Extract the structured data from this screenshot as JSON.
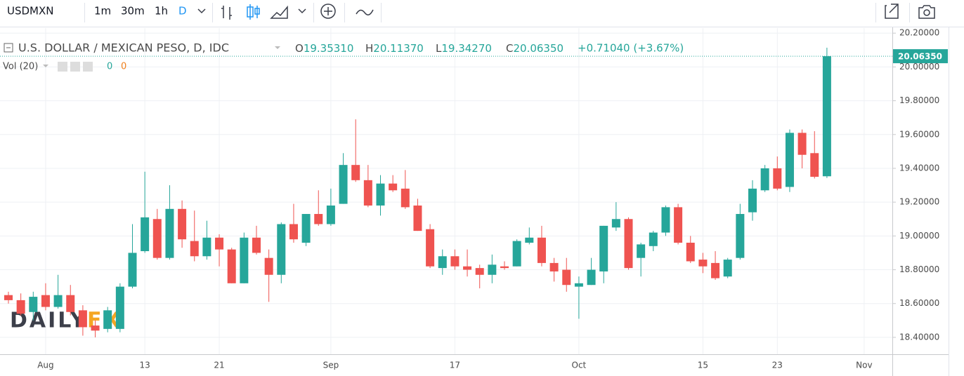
{
  "toolbar": {
    "symbol": "USDMXN",
    "intervals": [
      "1m",
      "30m",
      "1h",
      "D"
    ]
  },
  "chart_data": {
    "type": "candlestick",
    "legend": {
      "title": "U.S. DOLLAR / MEXICAN PESO, D, IDC",
      "ohlc": [
        {
          "label": "O",
          "value": "19.35310"
        },
        {
          "label": "H",
          "value": "20.11370"
        },
        {
          "label": "L",
          "value": "19.34270"
        },
        {
          "label": "C",
          "value": "20.06350"
        }
      ],
      "change": "+0.71040 (+3.67%)"
    },
    "volume": {
      "label": "Vol (20)",
      "values": [
        "0",
        "0"
      ]
    },
    "watermark": [
      "DAILY",
      "FX"
    ],
    "categories": [
      null,
      null,
      null,
      "Aug",
      null,
      null,
      null,
      null,
      null,
      null,
      null,
      "13",
      null,
      null,
      null,
      null,
      null,
      "21",
      null,
      null,
      null,
      null,
      null,
      null,
      null,
      null,
      "Sep",
      null,
      null,
      null,
      null,
      null,
      null,
      null,
      null,
      null,
      "17",
      null,
      null,
      null,
      null,
      null,
      null,
      null,
      null,
      null,
      "Oct",
      null,
      null,
      null,
      null,
      null,
      null,
      null,
      null,
      null,
      "15",
      null,
      null,
      null,
      null,
      null,
      "23",
      null,
      null,
      null,
      null,
      null,
      null,
      "Nov"
    ],
    "open": [
      18.65,
      18.62,
      18.55,
      18.65,
      18.58,
      18.65,
      18.56,
      18.47,
      18.45,
      18.45,
      18.7,
      18.91,
      19.1,
      18.87,
      19.16,
      18.97,
      18.88,
      18.99,
      18.92,
      18.72,
      18.99,
      18.87,
      18.77,
      19.07,
      18.96,
      19.13,
      19.07,
      19.19,
      19.42,
      19.33,
      19.18,
      19.31,
      19.28,
      19.18,
      19.04,
      18.81,
      18.88,
      18.82,
      18.81,
      18.77,
      18.82,
      18.82,
      18.96,
      18.99,
      18.84,
      18.8,
      18.7,
      18.71,
      18.79,
      19.05,
      19.1,
      18.87,
      18.94,
      19.02,
      19.17,
      18.96,
      18.86,
      18.84,
      18.76,
      18.87,
      19.14,
      19.27,
      19.4,
      19.29,
      19.61,
      19.49,
      19.3531,
      null,
      null,
      null
    ],
    "high": [
      18.67,
      18.66,
      18.67,
      18.72,
      18.77,
      18.71,
      18.59,
      18.5,
      18.58,
      18.72,
      19.07,
      19.38,
      19.16,
      19.3,
      19.21,
      19.15,
      19.09,
      19.01,
      18.93,
      19.02,
      19.06,
      18.92,
      19.08,
      19.19,
      19.13,
      19.27,
      19.28,
      19.49,
      19.69,
      19.42,
      19.36,
      19.36,
      19.39,
      19.22,
      19.07,
      18.92,
      18.92,
      18.92,
      18.83,
      18.89,
      18.85,
      18.98,
      19.05,
      19.06,
      18.87,
      18.87,
      18.76,
      18.87,
      19.06,
      19.2,
      19.11,
      18.96,
      19.03,
      19.18,
      19.19,
      19.0,
      18.9,
      18.91,
      18.87,
      19.19,
      19.33,
      19.42,
      19.47,
      19.63,
      19.63,
      19.62,
      20.1137,
      null,
      null,
      null
    ],
    "low": [
      18.6,
      18.53,
      18.5,
      18.56,
      18.57,
      18.53,
      18.41,
      18.4,
      18.43,
      18.43,
      18.69,
      18.9,
      18.86,
      18.86,
      18.93,
      18.85,
      18.86,
      18.82,
      18.72,
      18.72,
      18.89,
      18.61,
      18.72,
      18.96,
      18.94,
      19.06,
      19.06,
      19.19,
      19.32,
      19.17,
      19.12,
      19.26,
      19.16,
      19.03,
      18.81,
      18.77,
      18.8,
      18.76,
      18.69,
      18.72,
      18.8,
      18.82,
      18.95,
      18.82,
      18.73,
      18.67,
      18.51,
      18.71,
      18.72,
      19.03,
      18.8,
      18.76,
      18.91,
      19.0,
      18.95,
      18.84,
      18.78,
      18.74,
      18.75,
      18.86,
      19.09,
      19.26,
      19.27,
      19.26,
      19.4,
      19.34,
      19.3427,
      null,
      null,
      null
    ],
    "close": [
      18.62,
      18.54,
      18.64,
      18.58,
      18.65,
      18.55,
      18.46,
      18.44,
      18.56,
      18.7,
      18.9,
      19.11,
      18.87,
      19.16,
      18.98,
      18.88,
      18.99,
      18.92,
      18.72,
      18.99,
      18.9,
      18.77,
      19.07,
      18.98,
      19.13,
      19.07,
      19.18,
      19.42,
      19.33,
      19.18,
      19.31,
      19.27,
      19.17,
      19.03,
      18.82,
      18.88,
      18.82,
      18.8,
      18.77,
      18.83,
      18.81,
      18.97,
      18.99,
      18.84,
      18.79,
      18.71,
      18.72,
      18.8,
      19.06,
      19.1,
      18.81,
      18.95,
      19.02,
      19.17,
      18.96,
      18.85,
      18.82,
      18.75,
      18.86,
      19.13,
      19.28,
      19.4,
      19.28,
      19.61,
      19.48,
      19.35,
      20.0635,
      null,
      null,
      null
    ],
    "up_color": "#26a69a",
    "down_color": "#ef5350",
    "last_price": {
      "value": 20.0635,
      "label": "20.06350"
    },
    "ylim": [
      18.3,
      20.23
    ],
    "yticks": [
      {
        "value": 18.4,
        "label": "18.40000"
      },
      {
        "value": 18.6,
        "label": "18.60000"
      },
      {
        "value": 18.8,
        "label": "18.80000"
      },
      {
        "value": 19.0,
        "label": "19.00000"
      },
      {
        "value": 19.2,
        "label": "19.20000"
      },
      {
        "value": 19.4,
        "label": "19.40000"
      },
      {
        "value": 19.6,
        "label": "19.60000"
      },
      {
        "value": 19.8,
        "label": "19.80000"
      },
      {
        "value": 20.0,
        "label": "20.00000"
      },
      {
        "value": 20.2,
        "label": "20.20000"
      }
    ],
    "grid": true
  }
}
